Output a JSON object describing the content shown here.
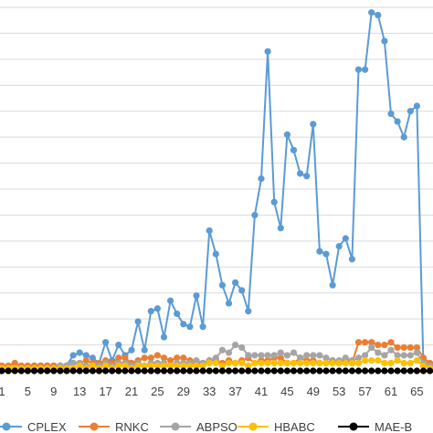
{
  "chart_data": {
    "type": "line",
    "title": "",
    "xlabel": "",
    "ylabel": "",
    "x": [
      1,
      2,
      3,
      4,
      5,
      6,
      7,
      8,
      9,
      10,
      11,
      12,
      13,
      14,
      15,
      16,
      17,
      18,
      19,
      20,
      21,
      22,
      23,
      24,
      25,
      26,
      27,
      28,
      29,
      30,
      31,
      32,
      33,
      34,
      35,
      36,
      37,
      38,
      39,
      40,
      41,
      42,
      43,
      44,
      45,
      46,
      47,
      48,
      49,
      50,
      51,
      52,
      53,
      54,
      55,
      56,
      57,
      58,
      59,
      60,
      61,
      62,
      63,
      64,
      65,
      66,
      67
    ],
    "x_tick_labels": [
      "1",
      "5",
      "9",
      "13",
      "17",
      "21",
      "25",
      "29",
      "33",
      "37",
      "41",
      "45",
      "49",
      "53",
      "57",
      "61",
      "65"
    ],
    "x_tick_values": [
      1,
      5,
      9,
      13,
      17,
      21,
      25,
      29,
      33,
      37,
      41,
      45,
      49,
      53,
      57,
      61,
      65
    ],
    "ylim": [
      0,
      14
    ],
    "y_gridlines": [
      0,
      1,
      2,
      3,
      4,
      5,
      6,
      7,
      8,
      9,
      10,
      11,
      12,
      13,
      14
    ],
    "grid": true,
    "legend_position": "bottom",
    "series": [
      {
        "name": "CPLEX",
        "color": "#5B9BD5",
        "values": [
          0.1,
          0.1,
          0.1,
          0.1,
          0.1,
          0.2,
          0.2,
          0.2,
          0.2,
          0.2,
          0.2,
          0.6,
          0.7,
          0.6,
          0.5,
          0.3,
          1.1,
          0.4,
          1.0,
          0.6,
          0.8,
          1.9,
          0.8,
          2.3,
          2.4,
          1.3,
          2.7,
          2.2,
          1.8,
          1.7,
          2.9,
          1.7,
          5.4,
          4.5,
          3.3,
          2.6,
          3.4,
          3.1,
          2.3,
          6.0,
          7.4,
          12.3,
          6.5,
          5.5,
          9.1,
          8.5,
          7.6,
          7.5,
          9.5,
          4.6,
          4.5,
          3.3,
          4.8,
          5.1,
          4.3,
          11.6,
          11.6,
          13.8,
          13.7,
          12.7,
          9.9,
          9.6,
          9.0,
          10.0,
          10.2,
          0.2,
          0.1
        ]
      },
      {
        "name": "RNKC",
        "color": "#ED7D31",
        "values": [
          0.2,
          0.2,
          0.3,
          0.2,
          0.2,
          0.2,
          0.2,
          0.2,
          0.2,
          0.2,
          0.2,
          0.3,
          0.3,
          0.4,
          0.3,
          0.3,
          0.4,
          0.3,
          0.5,
          0.5,
          0.3,
          0.4,
          0.5,
          0.5,
          0.6,
          0.5,
          0.4,
          0.5,
          0.5,
          0.4,
          0.3,
          0.3,
          0.4,
          0.4,
          0.3,
          0.4,
          0.3,
          0.4,
          0.5,
          0.3,
          0.4,
          0.4,
          0.5,
          0.5,
          0.3,
          0.3,
          0.5,
          0.4,
          0.4,
          0.3,
          0.3,
          0.4,
          0.3,
          0.4,
          0.3,
          1.1,
          1.1,
          1.1,
          1.0,
          1.0,
          1.1,
          0.9,
          0.9,
          0.9,
          0.9,
          0.5,
          0.3
        ]
      },
      {
        "name": "ABPSO",
        "color": "#A5A5A5",
        "values": [
          0.1,
          0.1,
          0.1,
          0.1,
          0.1,
          0.1,
          0.1,
          0.1,
          0.1,
          0.2,
          0.2,
          0.3,
          0.3,
          0.2,
          0.2,
          0.2,
          0.3,
          0.2,
          0.3,
          0.3,
          0.2,
          0.3,
          0.2,
          0.3,
          0.3,
          0.3,
          0.2,
          0.3,
          0.3,
          0.3,
          0.4,
          0.3,
          0.4,
          0.5,
          0.8,
          0.7,
          1.0,
          0.9,
          0.6,
          0.6,
          0.6,
          0.6,
          0.6,
          0.7,
          0.6,
          0.7,
          0.5,
          0.6,
          0.6,
          0.6,
          0.5,
          0.4,
          0.4,
          0.5,
          0.4,
          0.5,
          0.6,
          0.9,
          0.7,
          0.6,
          0.8,
          0.6,
          0.6,
          0.6,
          0.7,
          0.3,
          0.2
        ]
      },
      {
        "name": "HBABC",
        "color": "#FFC000",
        "values": [
          0.1,
          0.1,
          0.1,
          0.1,
          0.1,
          0.1,
          0.1,
          0.1,
          0.1,
          0.1,
          0.1,
          0.1,
          0.2,
          0.1,
          0.2,
          0.1,
          0.2,
          0.1,
          0.2,
          0.2,
          0.1,
          0.2,
          0.2,
          0.2,
          0.2,
          0.2,
          0.2,
          0.2,
          0.2,
          0.2,
          0.2,
          0.2,
          0.3,
          0.3,
          0.2,
          0.3,
          0.3,
          0.3,
          0.2,
          0.3,
          0.3,
          0.3,
          0.3,
          0.3,
          0.3,
          0.3,
          0.3,
          0.3,
          0.3,
          0.3,
          0.3,
          0.3,
          0.3,
          0.3,
          0.3,
          0.3,
          0.4,
          0.4,
          0.4,
          0.3,
          0.3,
          0.4,
          0.3,
          0.3,
          0.4,
          0.2,
          0.1
        ]
      },
      {
        "name": "MAE-B",
        "color": "#000000",
        "values": [
          0.0,
          0.0,
          0.0,
          0.0,
          0.0,
          0.0,
          0.0,
          0.0,
          0.0,
          0.0,
          0.0,
          0.0,
          0.0,
          0.0,
          0.0,
          0.0,
          0.0,
          0.0,
          0.0,
          0.0,
          0.0,
          0.0,
          0.0,
          0.0,
          0.0,
          0.0,
          0.0,
          0.0,
          0.0,
          0.0,
          0.0,
          0.0,
          0.0,
          0.0,
          0.0,
          0.0,
          0.0,
          0.0,
          0.0,
          0.0,
          0.0,
          0.0,
          0.0,
          0.0,
          0.0,
          0.0,
          0.0,
          0.0,
          0.0,
          0.0,
          0.0,
          0.0,
          0.0,
          0.0,
          0.0,
          0.0,
          0.0,
          0.0,
          0.0,
          0.0,
          0.0,
          0.0,
          0.0,
          0.0,
          0.0,
          0.0,
          0.0
        ]
      }
    ]
  }
}
